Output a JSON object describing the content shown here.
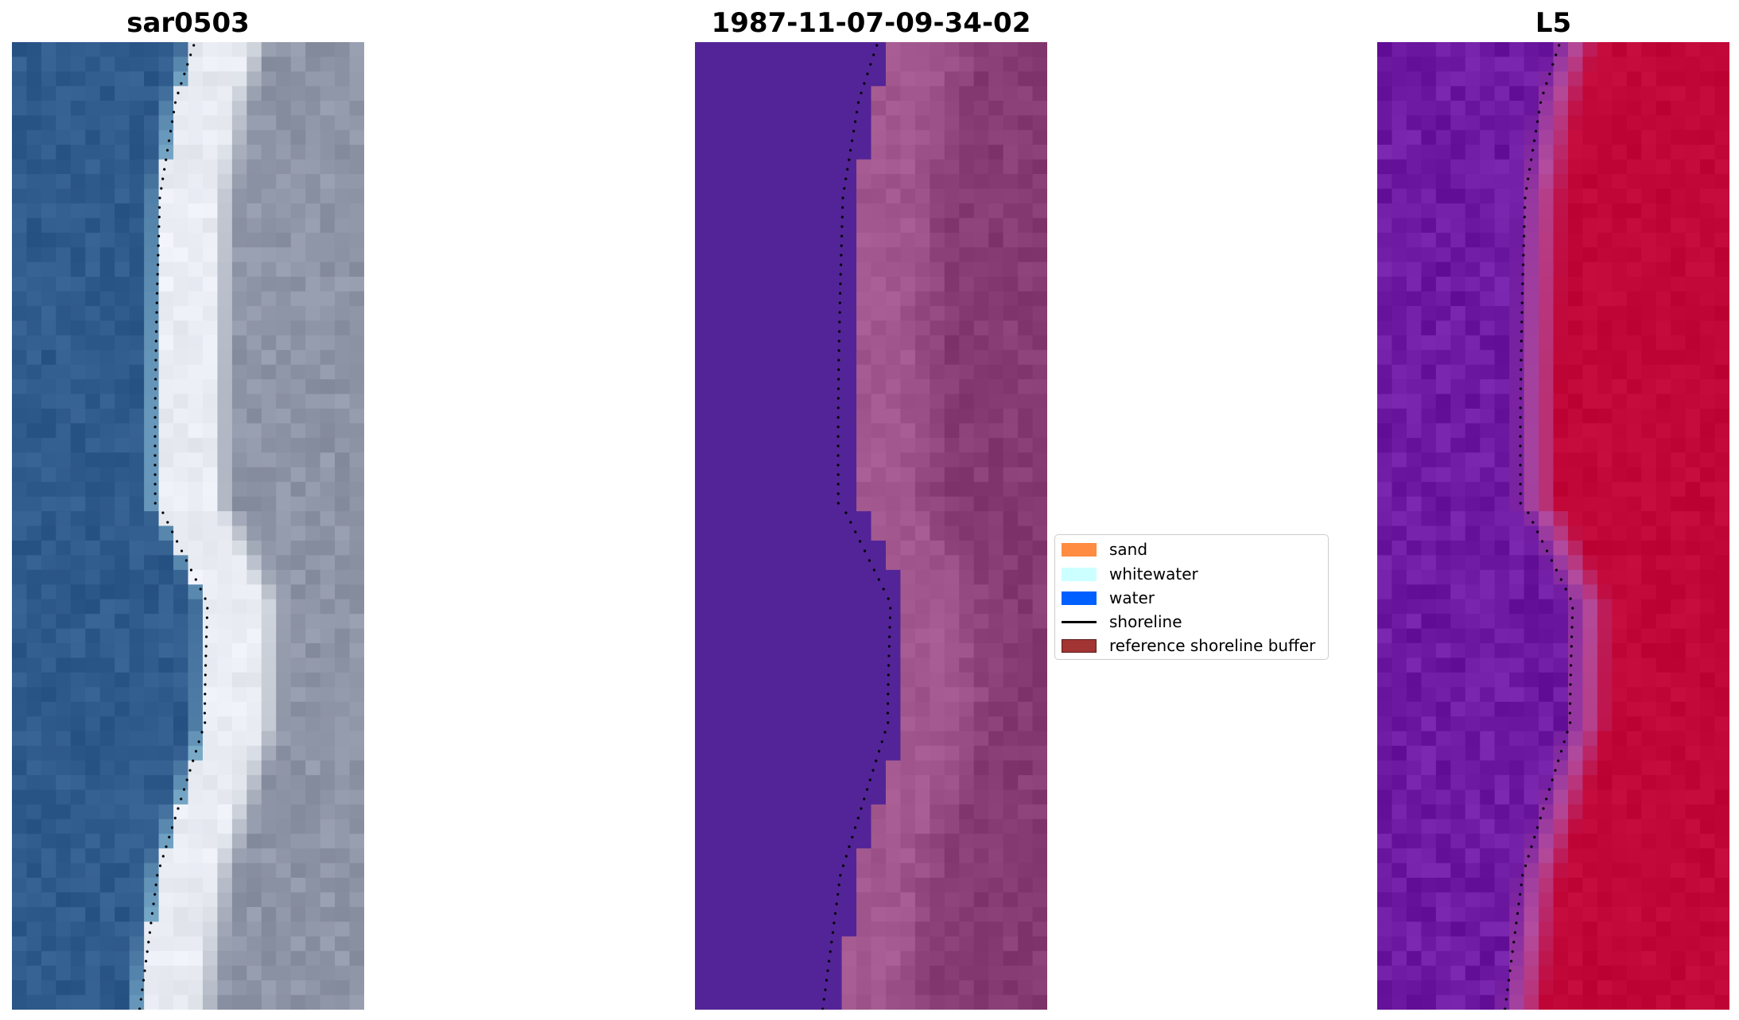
{
  "panels": {
    "left": {
      "title": "sar0503",
      "colors": {
        "water": "#2f5a8c",
        "whitewater": "#e4e8ee",
        "sand": "#8e95a6"
      }
    },
    "middle": {
      "title": "1987-11-07-09-34-02",
      "colors": {
        "water": "#532497",
        "sand": "#a2588e",
        "land": "#863b73"
      }
    },
    "right": {
      "title": "L5",
      "colors": {
        "water": "#6e1aa2",
        "transition": "#b34c9e",
        "land": "#c10738"
      }
    }
  },
  "legend": {
    "items": [
      {
        "label": "sand",
        "color": "#ff8c40",
        "kind": "patch"
      },
      {
        "label": "whitewater",
        "color": "#ccffff",
        "kind": "patch"
      },
      {
        "label": "water",
        "color": "#0060ff",
        "kind": "patch"
      },
      {
        "label": "shoreline",
        "color": "#000000",
        "kind": "line"
      },
      {
        "label": "reference shoreline buffer",
        "color": "#a33434",
        "kind": "patch"
      }
    ]
  }
}
